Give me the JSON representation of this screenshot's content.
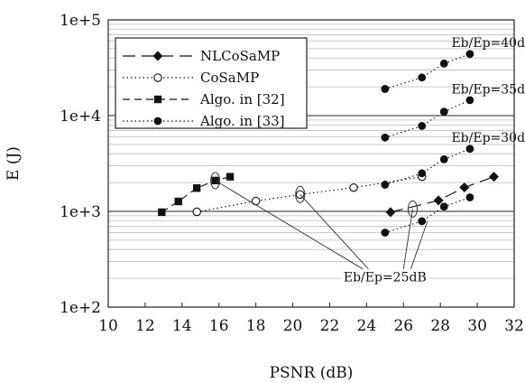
{
  "chart_data": {
    "type": "line",
    "xlabel": "PSNR (dB)",
    "ylabel": "E (J)",
    "xlim": [
      10,
      32
    ],
    "ylim": [
      100,
      100000
    ],
    "yscale": "log",
    "x_ticks": [
      "10",
      "12",
      "14",
      "16",
      "18",
      "20",
      "22",
      "24",
      "26",
      "28",
      "30",
      "32"
    ],
    "y_ticks": [
      "1e+2",
      "1e+3",
      "1e+4",
      "1e+5"
    ],
    "grid": "horizontal",
    "legend_position": "top-left",
    "legend": [
      {
        "label": "NLCoSaMP",
        "style": "long-dash",
        "marker": "diamond-filled"
      },
      {
        "label": "CoSaMP",
        "style": "dotted",
        "marker": "circle-open"
      },
      {
        "label": "Algo. in [32]",
        "style": "dashed",
        "marker": "square-filled"
      },
      {
        "label": "Algo. in [33]",
        "style": "dotted",
        "marker": "circle-filled"
      }
    ],
    "series": [
      {
        "name": "NLCoSaMP",
        "style": "long-dash",
        "marker": "diamond-filled",
        "x": [
          25.3,
          27.9,
          29.3,
          30.9
        ],
        "y": [
          980,
          1300,
          1780,
          2300
        ]
      },
      {
        "name": "CoSaMP",
        "style": "dotted",
        "marker": "circle-open",
        "x": [
          14.8,
          18.0,
          20.4,
          23.3,
          27.0
        ],
        "y": [
          990,
          1280,
          1500,
          1770,
          2300
        ]
      },
      {
        "name": "Algo. in [32]",
        "style": "dashed",
        "marker": "square-filled",
        "x": [
          12.9,
          13.8,
          14.8,
          15.8,
          16.6
        ],
        "y": [
          980,
          1270,
          1750,
          2100,
          2300
        ]
      },
      {
        "name": "Algo. in [33]",
        "style": "dotted",
        "marker": "circle-filled",
        "x": [
          25.0,
          27.0,
          28.2,
          29.6
        ],
        "y": [
          600,
          790,
          1120,
          1400
        ]
      },
      {
        "name": "Algo. in [33]",
        "style": "dotted",
        "marker": "circle-filled",
        "x": [
          25.0,
          27.0,
          28.2,
          29.6
        ],
        "y": [
          1900,
          2500,
          3500,
          4500
        ]
      },
      {
        "name": "Algo. in [33]",
        "style": "dotted",
        "marker": "circle-filled",
        "x": [
          25.0,
          27.0,
          28.2,
          29.6
        ],
        "y": [
          5900,
          7800,
          11000,
          14500
        ]
      },
      {
        "name": "Algo. in [33]",
        "style": "dotted",
        "marker": "circle-filled",
        "x": [
          25.0,
          27.0,
          28.2,
          29.6
        ],
        "y": [
          19000,
          25000,
          35000,
          44000
        ]
      }
    ],
    "annotations": [
      {
        "text": "Eb/Ep=40dB",
        "x": 28.6,
        "y": 52000
      },
      {
        "text": "Eb/Ep=35dB",
        "x": 28.6,
        "y": 17000
      },
      {
        "text": "Eb/Ep=30dB",
        "x": 28.6,
        "y": 5300
      },
      {
        "text": "Eb/Ep=25dB",
        "x": 25.0,
        "y": 240
      }
    ],
    "ellipses": [
      {
        "x": 15.8,
        "y": 2100
      },
      {
        "x": 20.4,
        "y": 1500
      },
      {
        "x": 26.5,
        "y": 1060
      }
    ],
    "leader_lines": [
      {
        "from": [
          15.8,
          2100
        ],
        "to": [
          23.8,
          250
        ]
      },
      {
        "from": [
          20.4,
          1500
        ],
        "to": [
          24.1,
          250
        ]
      },
      {
        "from": [
          26.5,
          1060
        ],
        "to": [
          26.0,
          250
        ]
      },
      {
        "from": [
          27.3,
          790
        ],
        "to": [
          26.4,
          250
        ]
      }
    ]
  }
}
